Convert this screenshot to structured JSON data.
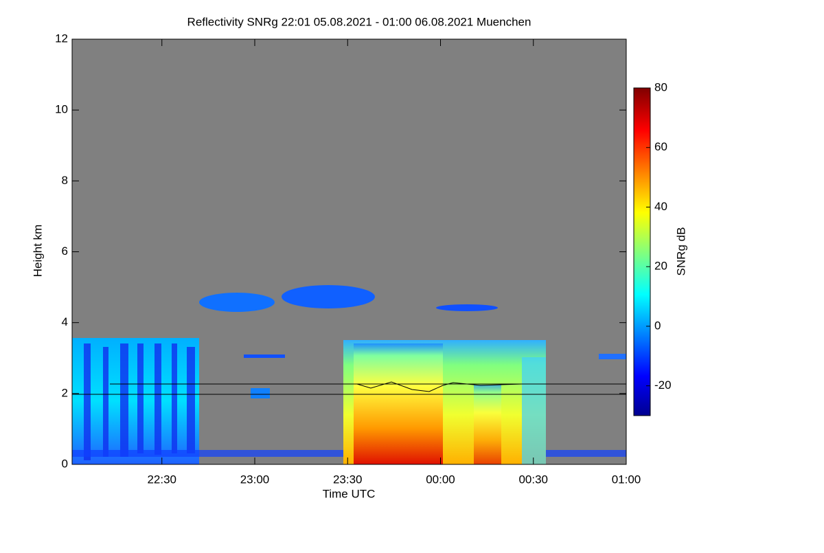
{
  "chart_data": {
    "type": "heatmap",
    "title": "Reflectivity SNRg   22:01 05.08.2021 - 01:00 06.08.2021 Muenchen",
    "xlabel": "Time UTC",
    "ylabel": "Height km",
    "xlim": [
      1321,
      1500
    ],
    "xticks": [
      {
        "value": 1350,
        "label": "22:30"
      },
      {
        "value": 1380,
        "label": "23:00"
      },
      {
        "value": 1410,
        "label": "23:30"
      },
      {
        "value": 1440,
        "label": "00:00"
      },
      {
        "value": 1470,
        "label": "00:30"
      },
      {
        "value": 1500,
        "label": "01:00"
      }
    ],
    "ylim": [
      0,
      12
    ],
    "yticks": [
      0,
      2,
      4,
      6,
      8,
      10,
      12
    ],
    "colorbar": {
      "label": "SNRg dB",
      "lim": [
        -30,
        80
      ],
      "ticks": [
        -20,
        0,
        20,
        40,
        60,
        80
      ]
    }
  }
}
